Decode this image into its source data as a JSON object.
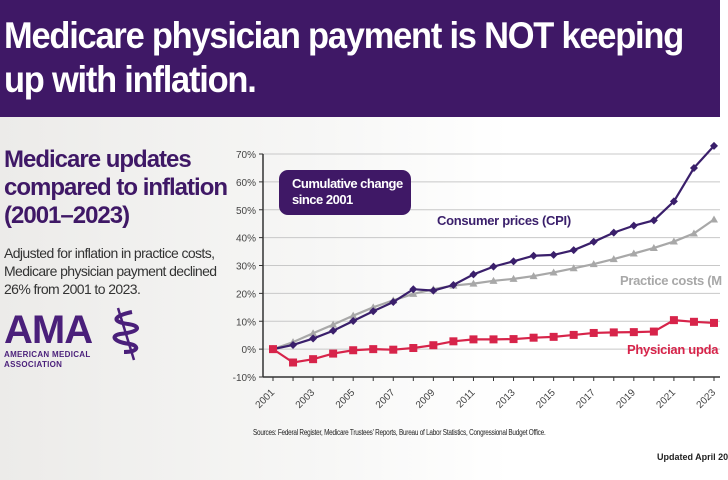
{
  "header": {
    "title_line1": "Medicare physician payment is NOT keeping",
    "title_line2": "up with inflation."
  },
  "sidebar": {
    "subtitle": "Medicare updates compared to inflation (2001–2023)",
    "description": "Adjusted for inflation in practice costs, Medicare physician payment declined 26% from 2001 to 2023.",
    "logo_text": "AMA",
    "logo_org": "AMERICAN MEDICAL ASSOCIATION"
  },
  "footer": {
    "sources": "Sources: Federal Register, Medicare Trustees' Reports, Bureau of Labor Statistics, Congressional Budget Office.",
    "updated": "Updated April 20"
  },
  "chart_data": {
    "type": "line",
    "annotation": "Cumulative change since 2001",
    "x": [
      2001,
      2002,
      2003,
      2004,
      2005,
      2006,
      2007,
      2008,
      2009,
      2010,
      2011,
      2012,
      2013,
      2014,
      2015,
      2016,
      2017,
      2018,
      2019,
      2020,
      2021,
      2022,
      2023
    ],
    "xtick_labels": [
      "2001",
      "2003",
      "2005",
      "2007",
      "2009",
      "2011",
      "2013",
      "2015",
      "2017",
      "2019",
      "2021",
      "2023"
    ],
    "ytick_labels": [
      "70%",
      "60%",
      "50%",
      "40%",
      "30%",
      "20%",
      "10%",
      "0%",
      "-10%"
    ],
    "ylim": [
      -10,
      70
    ],
    "grid": true,
    "series": [
      {
        "name": "Consumer prices (CPI)",
        "color": "#3a1f6b",
        "marker": "diamond",
        "values": [
          0,
          1.5,
          3.8,
          6.6,
          10.1,
          13.6,
          16.9,
          21.5,
          21.0,
          23.0,
          26.8,
          29.6,
          31.5,
          33.5,
          33.8,
          35.5,
          38.5,
          41.8,
          44.3,
          46.2,
          53.0,
          65.0,
          72.9
        ]
      },
      {
        "name": "Practice costs (M",
        "color": "#a8a8a8",
        "marker": "triangle",
        "values": [
          0,
          2.5,
          5.7,
          8.8,
          12.0,
          15.0,
          17.5,
          19.8,
          21.5,
          22.8,
          23.5,
          24.5,
          25.2,
          26.2,
          27.5,
          29.0,
          30.5,
          32.3,
          34.3,
          36.3,
          38.6,
          41.5,
          46.5
        ]
      },
      {
        "name": "Physician upda",
        "color": "#d7244a",
        "marker": "square",
        "values": [
          0,
          -4.8,
          -3.6,
          -1.6,
          -0.4,
          0,
          -0.2,
          0.4,
          1.4,
          2.8,
          3.5,
          3.5,
          3.6,
          4.1,
          4.4,
          5.1,
          5.8,
          6.0,
          6.1,
          6.3,
          10.4,
          9.8,
          9.4
        ]
      }
    ]
  }
}
